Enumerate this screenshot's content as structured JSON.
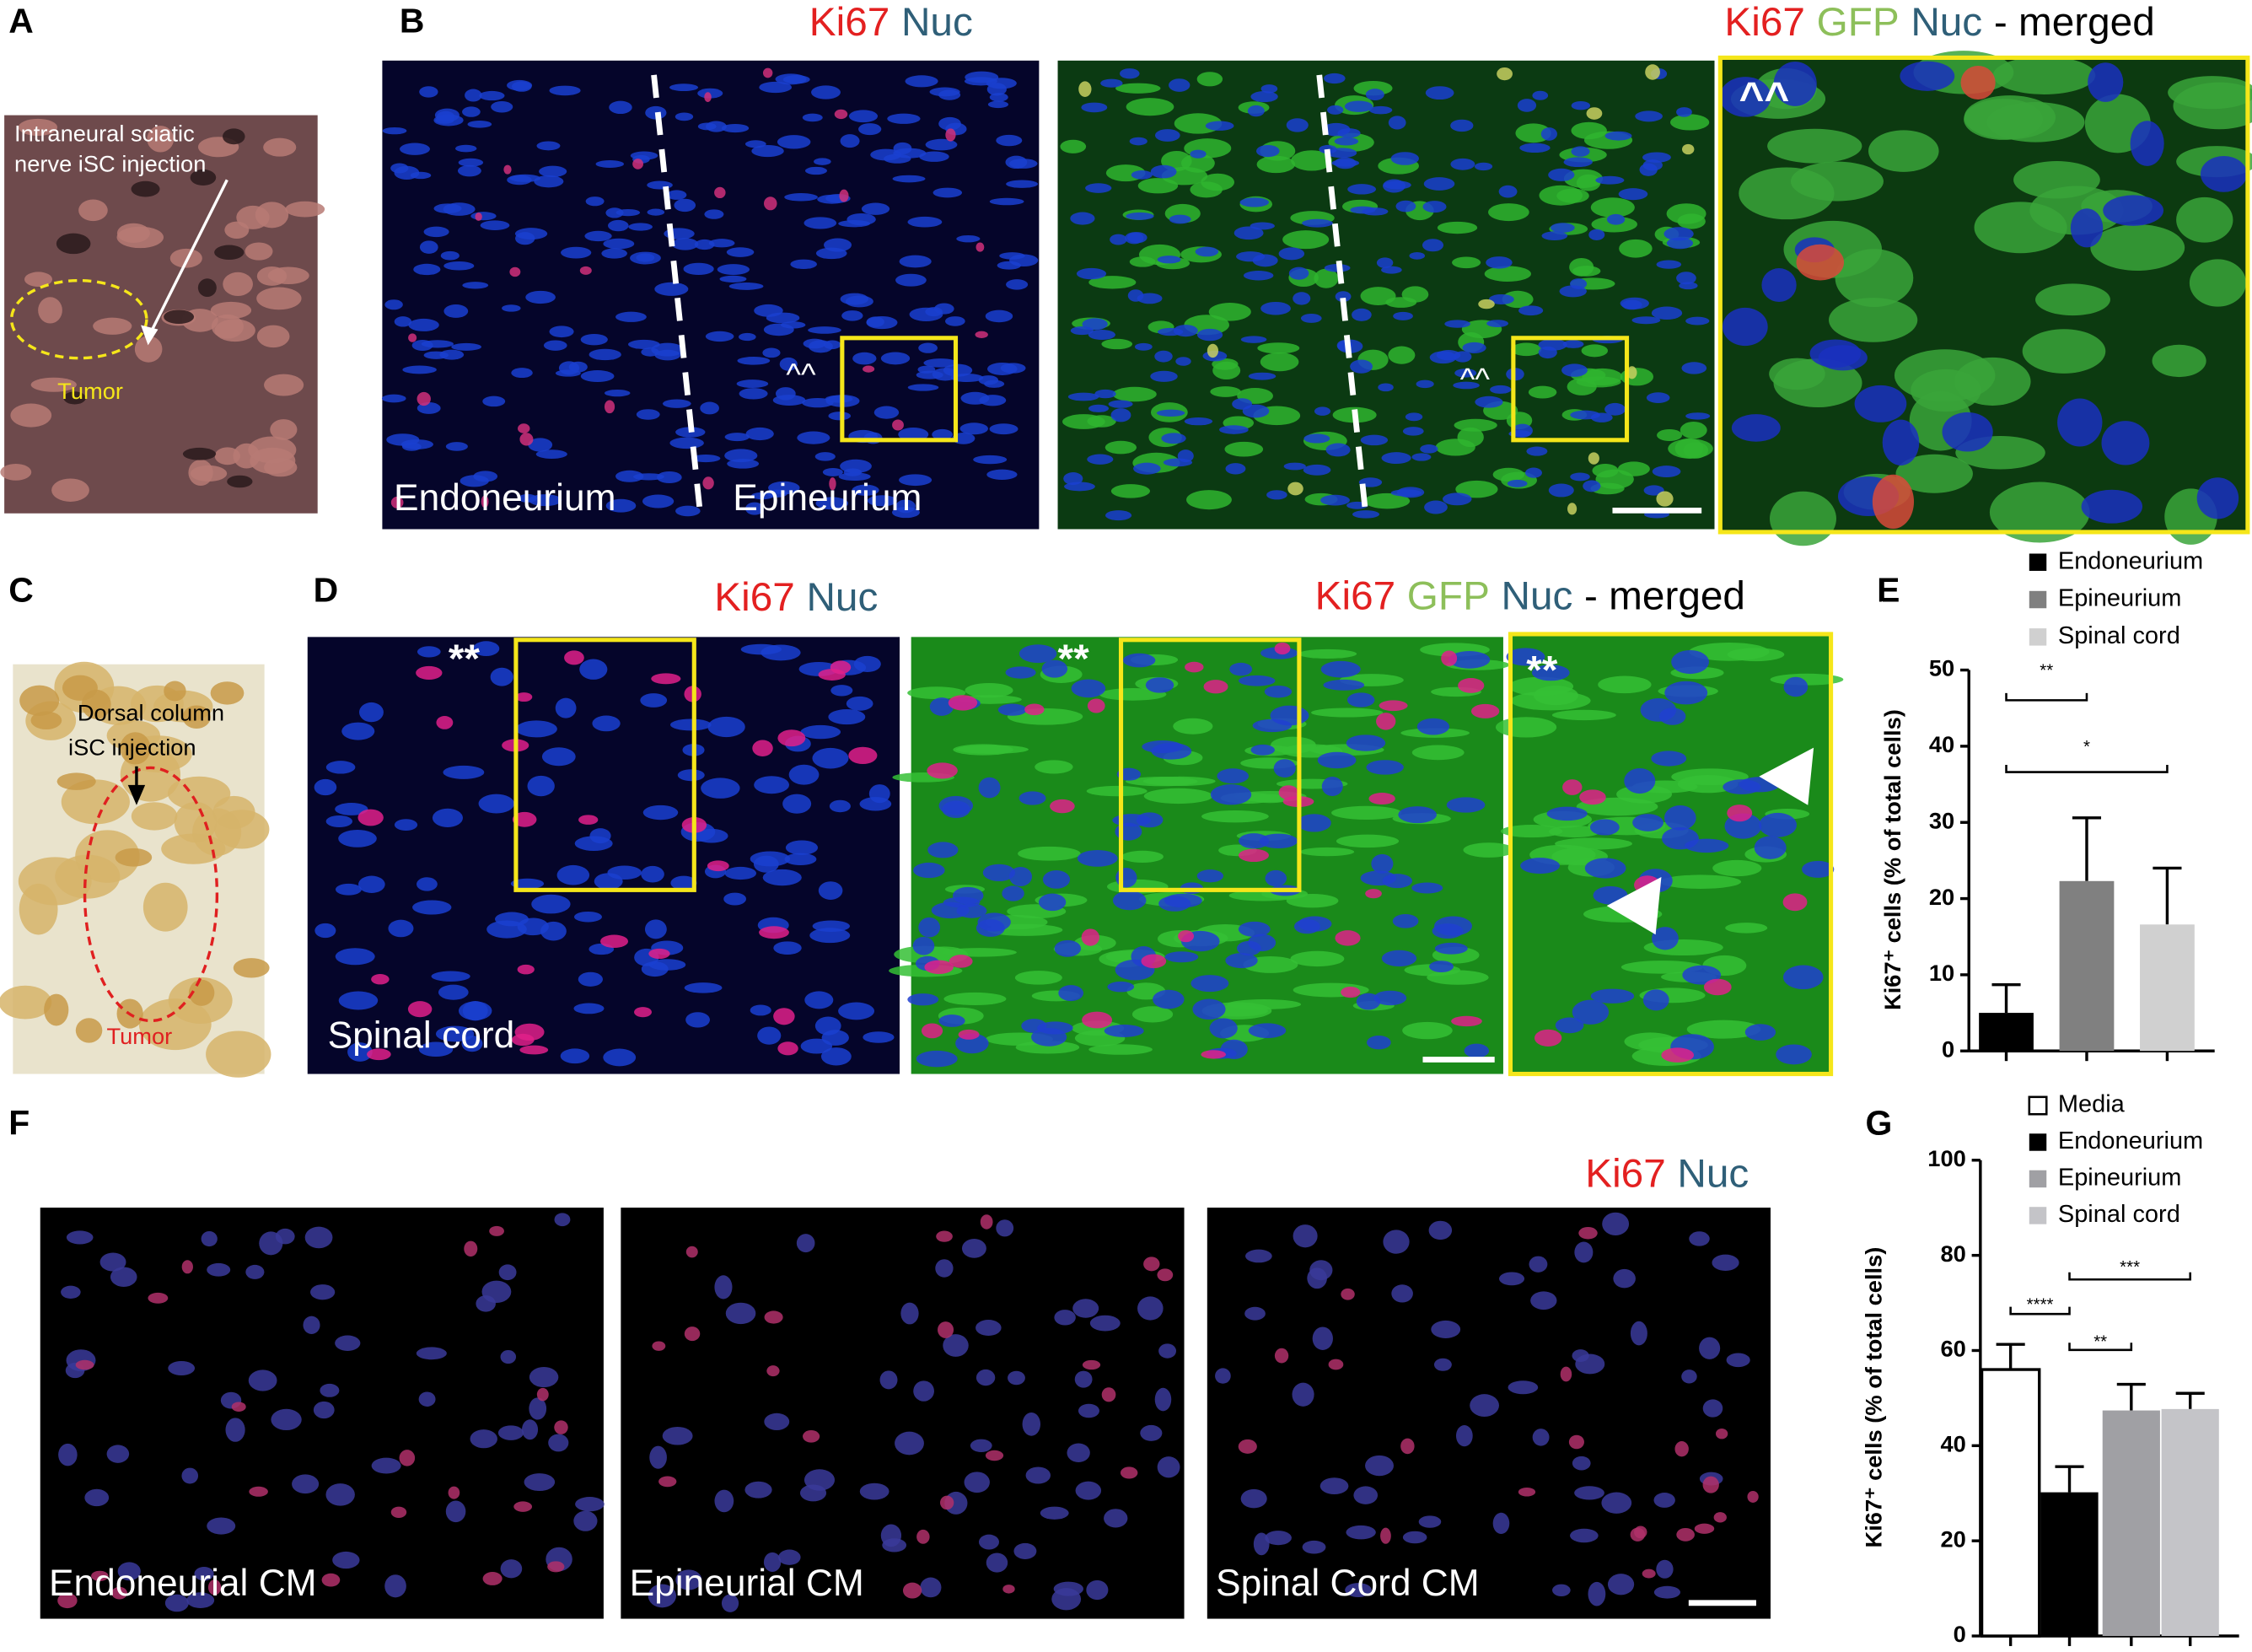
{
  "panel_letters": [
    "A",
    "B",
    "C",
    "D",
    "E",
    "F",
    "G"
  ],
  "panel_a": {
    "annotation": [
      "Intraneural sciatic",
      "nerve iSC injection"
    ],
    "tumor": "Tumor"
  },
  "panel_b": {
    "title": {
      "ki67": "Ki67",
      "nuc": "Nuc"
    },
    "merged_title": {
      "ki67": "Ki67",
      "gfp": "GFP",
      "nuc": "Nuc",
      "suffix": "- merged"
    },
    "regions": [
      "Endoneurium",
      "Epineurium"
    ],
    "markers": [
      "^^",
      "^^",
      "^^"
    ]
  },
  "panel_c": {
    "annotation": [
      "Dorsal column",
      "iSC injection"
    ],
    "tumor": "Tumor"
  },
  "panel_d": {
    "title": {
      "ki67": "Ki67",
      "nuc": "Nuc"
    },
    "merged_title": {
      "ki67": "Ki67",
      "gfp": "GFP",
      "nuc": "Nuc",
      "suffix": "- merged"
    },
    "region": "Spinal cord",
    "markers": [
      "**",
      "**",
      "**"
    ]
  },
  "panel_f": {
    "title": {
      "ki67": "Ki67",
      "nuc": "Nuc"
    },
    "labels": [
      "Endoneurial CM",
      "Epineurial CM",
      "Spinal Cord CM"
    ]
  },
  "chart_data": [
    {
      "type": "bar",
      "y_label": "Ki67⁺ cells (% of total cells)",
      "categories": [
        null,
        null,
        null
      ],
      "series": [
        {
          "name": "Endoneurium",
          "color": "#000000",
          "values": [
            5,
            null,
            null
          ],
          "errors": [
            3.7,
            null,
            null
          ]
        },
        {
          "name": "Epineurium",
          "color": "#808080",
          "values": [
            null,
            22.3,
            null
          ],
          "errors": [
            null,
            8.3,
            null
          ]
        },
        {
          "name": "Spinal cord",
          "color": "#d0d0d0",
          "values": [
            null,
            null,
            16.6
          ],
          "errors": [
            null,
            null,
            7.4
          ]
        }
      ],
      "ylim": [
        0,
        50
      ],
      "yticks": [
        0,
        10,
        20,
        30,
        40,
        50
      ],
      "annotations": [
        "**",
        "*"
      ]
    },
    {
      "type": "bar",
      "y_label": "Ki67⁺ cells (% of total cells)",
      "categories": [
        null,
        null,
        null,
        null
      ],
      "series": [
        {
          "name": "Media",
          "color": "#ffffff",
          "values": [
            56,
            null,
            null,
            null
          ],
          "errors": [
            5.3,
            null,
            null,
            null
          ]
        },
        {
          "name": "Endoneurium",
          "color": "#000000",
          "values": [
            null,
            30.2,
            null,
            null
          ],
          "errors": [
            null,
            5.4,
            null,
            null
          ]
        },
        {
          "name": "Epineurium",
          "color": "#a0a0a4",
          "values": [
            null,
            null,
            47.4,
            null
          ],
          "errors": [
            null,
            null,
            5.5,
            null
          ]
        },
        {
          "name": "Spinal cord",
          "color": "#c4c4c8",
          "values": [
            null,
            null,
            null,
            47.7
          ],
          "errors": [
            null,
            null,
            null,
            3.3
          ]
        }
      ],
      "ylim": [
        0,
        100
      ],
      "yticks": [
        0,
        20,
        40,
        60,
        80,
        100
      ],
      "annotations": [
        "****",
        "**",
        "***"
      ]
    }
  ]
}
